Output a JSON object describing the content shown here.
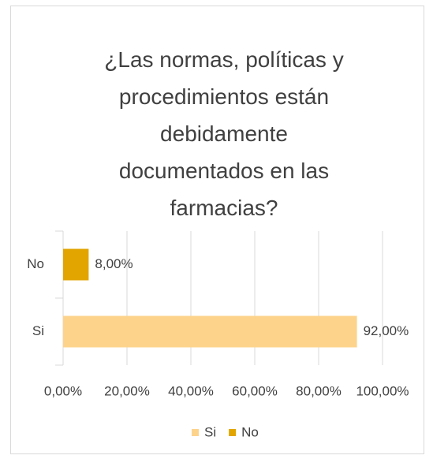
{
  "chart_data": {
    "type": "hbar",
    "title": "¿Las normas, políticas y procedimientos están debidamente documentados en las farmacias?",
    "categories": [
      "No",
      "Si"
    ],
    "values": [
      8,
      92
    ],
    "value_labels": [
      "8,00%",
      "92,00%"
    ],
    "colors": [
      "#e2a500",
      "#fdd38c"
    ],
    "xlim": [
      0,
      100
    ],
    "xticks": [
      {
        "value": 0,
        "label": "0,00%"
      },
      {
        "value": 20,
        "label": "20,00%"
      },
      {
        "value": 40,
        "label": "40,00%"
      },
      {
        "value": 60,
        "label": "60,00%"
      },
      {
        "value": 80,
        "label": "80,00%"
      },
      {
        "value": 100,
        "label": "100,00%"
      }
    ],
    "grid": true,
    "legend": "bottom",
    "legend_order": [
      "Si",
      "No"
    ]
  }
}
